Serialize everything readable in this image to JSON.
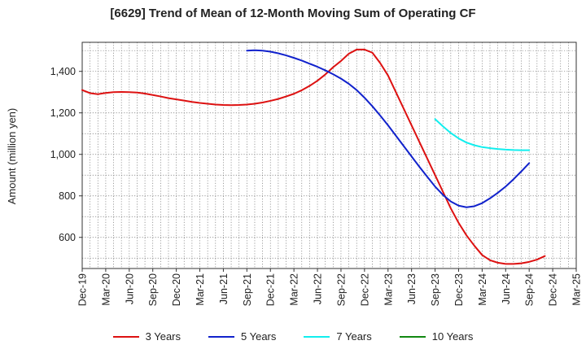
{
  "chart_data": {
    "type": "line",
    "title": "[6629]  Trend of Mean of 12-Month Moving Sum of Operating CF",
    "xlabel": "",
    "ylabel": "Amount (million yen)",
    "ylim": [
      450,
      1540
    ],
    "yticks": [
      600,
      800,
      1000,
      1200,
      1400
    ],
    "ytick_labels": [
      "600",
      "800",
      "1,000",
      "1,200",
      "1,400"
    ],
    "grid": true,
    "legend_position": "bottom",
    "x_tick_labels": [
      "Dec-19",
      "Mar-20",
      "Jun-20",
      "Sep-20",
      "Dec-20",
      "Mar-21",
      "Jun-21",
      "Sep-21",
      "Dec-21",
      "Mar-22",
      "Jun-22",
      "Sep-22",
      "Dec-22",
      "Mar-23",
      "Jun-23",
      "Sep-23",
      "Dec-23",
      "Mar-24",
      "Jun-24",
      "Sep-24",
      "Dec-24",
      "Mar-25"
    ],
    "x_months": [
      "2019-12",
      "2020-01",
      "2020-02",
      "2020-03",
      "2020-04",
      "2020-05",
      "2020-06",
      "2020-07",
      "2020-08",
      "2020-09",
      "2020-10",
      "2020-11",
      "2020-12",
      "2021-01",
      "2021-02",
      "2021-03",
      "2021-04",
      "2021-05",
      "2021-06",
      "2021-07",
      "2021-08",
      "2021-09",
      "2021-10",
      "2021-11",
      "2021-12",
      "2022-01",
      "2022-02",
      "2022-03",
      "2022-04",
      "2022-05",
      "2022-06",
      "2022-07",
      "2022-08",
      "2022-09",
      "2022-10",
      "2022-11",
      "2022-12",
      "2023-01",
      "2023-02",
      "2023-03",
      "2023-04",
      "2023-05",
      "2023-06",
      "2023-07",
      "2023-08",
      "2023-09",
      "2023-10",
      "2023-11",
      "2023-12",
      "2024-01",
      "2024-02",
      "2024-03",
      "2024-04",
      "2024-05",
      "2024-06",
      "2024-07",
      "2024-08",
      "2024-09",
      "2024-10",
      "2024-11",
      "2024-12",
      "2025-01",
      "2025-02",
      "2025-03"
    ],
    "series": [
      {
        "name": "3 Years",
        "color": "#dd1111",
        "start_index": 0,
        "values": [
          1310,
          1295,
          1290,
          1296,
          1300,
          1301,
          1300,
          1298,
          1293,
          1286,
          1279,
          1271,
          1265,
          1259,
          1253,
          1248,
          1244,
          1240,
          1238,
          1237,
          1238,
          1240,
          1244,
          1250,
          1258,
          1267,
          1279,
          1292,
          1309,
          1330,
          1355,
          1385,
          1420,
          1450,
          1485,
          1505,
          1505,
          1490,
          1440,
          1380,
          1300,
          1220,
          1140,
          1060,
          980,
          900,
          820,
          740,
          670,
          610,
          560,
          515,
          490,
          478,
          472,
          472,
          475,
          482,
          493,
          510
        ]
      },
      {
        "name": "5 Years",
        "color": "#1122cc",
        "start_index": 21,
        "values": [
          1500,
          1502,
          1500,
          1495,
          1487,
          1477,
          1465,
          1452,
          1437,
          1422,
          1405,
          1386,
          1365,
          1340,
          1310,
          1273,
          1232,
          1187,
          1140,
          1090,
          1040,
          990,
          940,
          892,
          845,
          805,
          773,
          753,
          745,
          750,
          765,
          788,
          815,
          845,
          880,
          918,
          958
        ]
      },
      {
        "name": "7 Years",
        "color": "#11eeee",
        "start_index": 45,
        "values": [
          1170,
          1135,
          1103,
          1077,
          1057,
          1044,
          1035,
          1030,
          1026,
          1023,
          1021,
          1020,
          1020
        ]
      },
      {
        "name": "10 Years",
        "color": "#118811",
        "start_index": 0,
        "values": []
      }
    ]
  }
}
